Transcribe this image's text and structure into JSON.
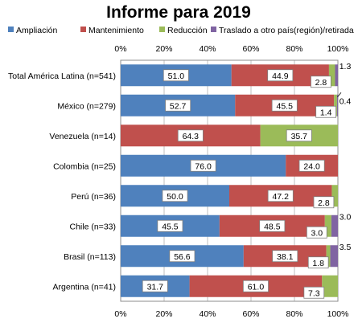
{
  "chart_data": {
    "type": "bar",
    "orientation": "horizontal",
    "stacked": "percent",
    "title": "Informe para 2019",
    "categories": [
      "Total América Latina (n=541)",
      "México (n=279)",
      "Venezuela (n=14)",
      "Colombia (n=25)",
      "Perú (n=36)",
      "Chile (n=33)",
      "Brasil (n=113)",
      "Argentina (n=41)"
    ],
    "series": [
      {
        "name": "Ampliación",
        "color": "#4f81bd",
        "values": [
          51.0,
          52.7,
          0,
          76.0,
          50.0,
          45.5,
          56.6,
          31.7
        ]
      },
      {
        "name": "Mantenimiento",
        "color": "#c0504d",
        "values": [
          44.9,
          45.5,
          64.3,
          24.0,
          47.2,
          48.5,
          38.1,
          61.0
        ]
      },
      {
        "name": "Reducción",
        "color": "#9bbb59",
        "values": [
          2.8,
          1.4,
          35.7,
          0,
          2.8,
          3.0,
          1.8,
          7.3
        ]
      },
      {
        "name": "Traslado a otro país(región)/retirada",
        "color": "#8064a2",
        "values": [
          1.3,
          0.4,
          0,
          0,
          0,
          3.0,
          3.5,
          0
        ]
      }
    ],
    "labels": [
      [
        "51.0",
        "44.9",
        "2.8",
        "1.3"
      ],
      [
        "52.7",
        "45.5",
        "1.4",
        "0.4"
      ],
      [
        "",
        "64.3",
        "35.7",
        ""
      ],
      [
        "76.0",
        "24.0",
        "",
        ""
      ],
      [
        "50.0",
        "47.2",
        "2.8",
        ""
      ],
      [
        "45.5",
        "48.5",
        "3.0",
        "3.0"
      ],
      [
        "56.6",
        "38.1",
        "1.8",
        "3.5"
      ],
      [
        "31.7",
        "61.0",
        "7.3",
        ""
      ]
    ],
    "xlim": [
      0,
      100
    ],
    "ticks": [
      "0%",
      "20%",
      "40%",
      "60%",
      "80%",
      "100%"
    ],
    "legend_position": "top",
    "grid": true
  }
}
